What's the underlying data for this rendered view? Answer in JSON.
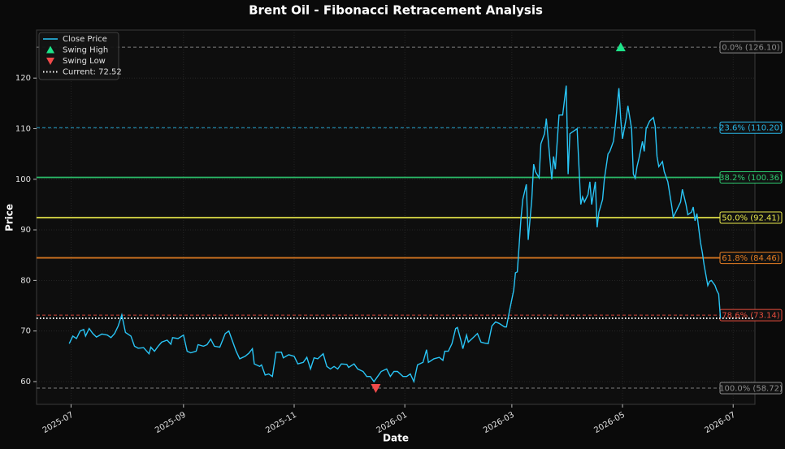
{
  "chart_data": {
    "type": "line",
    "title": "Brent Oil - Fibonacci Retracement Analysis",
    "xlabel": "Date",
    "ylabel": "Price",
    "xlim": [
      "2025-06-12",
      "2026-07-13"
    ],
    "xticks": [
      "2025-07",
      "2025-09",
      "2025-11",
      "2026-01",
      "2026-03",
      "2026-05",
      "2026-07"
    ],
    "ylim": [
      55.5,
      129.5
    ],
    "yticks": [
      60,
      70,
      80,
      90,
      100,
      110,
      120
    ],
    "grid": true,
    "legend": "upper left",
    "series": [
      {
        "name": "Close Price",
        "color": "#29c5f6",
        "kind": "line",
        "x": [
          "2025-06-30",
          "2025-07-02",
          "2025-07-04",
          "2025-07-06",
          "2025-07-08",
          "2025-07-09",
          "2025-07-11",
          "2025-07-13",
          "2025-07-15",
          "2025-07-18",
          "2025-07-21",
          "2025-07-23",
          "2025-07-25",
          "2025-07-27",
          "2025-07-29",
          "2025-07-31",
          "2025-08-03",
          "2025-08-05",
          "2025-08-07",
          "2025-08-10",
          "2025-08-13",
          "2025-08-14",
          "2025-08-16",
          "2025-08-18",
          "2025-08-20",
          "2025-08-23",
          "2025-08-25",
          "2025-08-26",
          "2025-08-29",
          "2025-09-01",
          "2025-09-03",
          "2025-09-05",
          "2025-09-08",
          "2025-09-09",
          "2025-09-12",
          "2025-09-14",
          "2025-09-16",
          "2025-09-18",
          "2025-09-21",
          "2025-09-24",
          "2025-09-26",
          "2025-09-28",
          "2025-09-30",
          "2025-10-02",
          "2025-10-05",
          "2025-10-07",
          "2025-10-09",
          "2025-10-10",
          "2025-10-13",
          "2025-10-14",
          "2025-10-16",
          "2025-10-18",
          "2025-10-20",
          "2025-10-22",
          "2025-10-25",
          "2025-10-26",
          "2025-10-29",
          "2025-11-01",
          "2025-11-03",
          "2025-11-06",
          "2025-11-08",
          "2025-11-10",
          "2025-11-12",
          "2025-11-14",
          "2025-11-17",
          "2025-11-19",
          "2025-11-21",
          "2025-11-23",
          "2025-11-25",
          "2025-11-27",
          "2025-11-30",
          "2025-12-01",
          "2025-12-04",
          "2025-12-06",
          "2025-12-09",
          "2025-12-11",
          "2025-12-13",
          "2025-12-15",
          "2025-12-17",
          "2025-12-19",
          "2025-12-22",
          "2025-12-24",
          "2025-12-26",
          "2025-12-28",
          "2025-12-31",
          "2026-01-02",
          "2026-01-04",
          "2026-01-06",
          "2026-01-08",
          "2026-01-11",
          "2026-01-13",
          "2026-01-14",
          "2026-01-17",
          "2026-01-20",
          "2026-01-22",
          "2026-01-23",
          "2026-01-25",
          "2026-01-27",
          "2026-01-29",
          "2026-01-30",
          "2026-02-01",
          "2026-02-02",
          "2026-02-04",
          "2026-02-05",
          "2026-02-08",
          "2026-02-10",
          "2026-02-12",
          "2026-02-14",
          "2026-02-16",
          "2026-02-18",
          "2026-02-20",
          "2026-02-22",
          "2026-02-25",
          "2026-02-26",
          "2026-02-28",
          "2026-03-02",
          "2026-03-03",
          "2026-03-04",
          "2026-03-06",
          "2026-03-07",
          "2026-03-09",
          "2026-03-10",
          "2026-03-12",
          "2026-03-13",
          "2026-03-14",
          "2026-03-16",
          "2026-03-17",
          "2026-03-19",
          "2026-03-20",
          "2026-03-22",
          "2026-03-23",
          "2026-03-24",
          "2026-03-25",
          "2026-03-27",
          "2026-03-29",
          "2026-03-31",
          "2026-04-01",
          "2026-04-02",
          "2026-04-04",
          "2026-04-06",
          "2026-04-08",
          "2026-04-09",
          "2026-04-10",
          "2026-04-12",
          "2026-04-13",
          "2026-04-14",
          "2026-04-16",
          "2026-04-17",
          "2026-04-18",
          "2026-04-20",
          "2026-04-21",
          "2026-04-23",
          "2026-04-24",
          "2026-04-26",
          "2026-04-27",
          "2026-04-29",
          "2026-04-30",
          "2026-05-01",
          "2026-05-03",
          "2026-05-04",
          "2026-05-06",
          "2026-05-07",
          "2026-05-08",
          "2026-05-09",
          "2026-05-10",
          "2026-05-12",
          "2026-05-13",
          "2026-05-14",
          "2026-05-16",
          "2026-05-18",
          "2026-05-19",
          "2026-05-20",
          "2026-05-21",
          "2026-05-23",
          "2026-05-24",
          "2026-05-26",
          "2026-05-28",
          "2026-05-29",
          "2026-05-31",
          "2026-06-02",
          "2026-06-03",
          "2026-06-05",
          "2026-06-06",
          "2026-06-08",
          "2026-06-09",
          "2026-06-10",
          "2026-06-11",
          "2026-06-13",
          "2026-06-14",
          "2026-06-15",
          "2026-06-17",
          "2026-06-18",
          "2026-06-19",
          "2026-06-21",
          "2026-06-22",
          "2026-06-23",
          "2026-06-24"
        ],
        "values": [
          67.5,
          69,
          68.5,
          70,
          70.3,
          69,
          70.5,
          69.5,
          68.8,
          69.4,
          69.2,
          68.7,
          69.5,
          71,
          73.2,
          69.7,
          69,
          67,
          66.6,
          66.7,
          65.5,
          66.8,
          66,
          67,
          67.8,
          68.2,
          67.4,
          68.7,
          68.5,
          69.2,
          66,
          65.7,
          66,
          67.3,
          67,
          67.3,
          68.4,
          67,
          66.8,
          69.5,
          70,
          68,
          66,
          64.5,
          65,
          65.6,
          66.5,
          63.5,
          63,
          63.3,
          61.3,
          61.5,
          61,
          65.8,
          65.8,
          64.7,
          65.3,
          65,
          63.5,
          63.8,
          64.8,
          62.5,
          64.7,
          64.5,
          65.5,
          63,
          62.5,
          63,
          62.5,
          63.5,
          63.4,
          62.8,
          63.5,
          62.5,
          62,
          61,
          61,
          60,
          61,
          62,
          62.5,
          61,
          62,
          62,
          61,
          61,
          61.5,
          60,
          63.3,
          63.8,
          66.3,
          63.8,
          64.5,
          64.8,
          64.2,
          66,
          66,
          67.5,
          70.5,
          70.7,
          68,
          66.5,
          69.2,
          67.8,
          68.8,
          69.5,
          67.8,
          67.6,
          67.5,
          71,
          71.8,
          71.5,
          70.8,
          70.8,
          74.5,
          78,
          81.5,
          81.7,
          92,
          96,
          99,
          88,
          96,
          103,
          101.5,
          100.3,
          107,
          109,
          112,
          104,
          100,
          104.5,
          102,
          112.7,
          112.7,
          118.5,
          101,
          109,
          109.5,
          110,
          95,
          96.5,
          95.5,
          97,
          99.5,
          95,
          99.5,
          90.5,
          93.5,
          96,
          100,
          105,
          105.5,
          107.5,
          110.5,
          118,
          112,
          108,
          112,
          114.5,
          110,
          101,
          100.2,
          102.5,
          104,
          107.5,
          105.5,
          110,
          111.5,
          112.2,
          110.5,
          104.5,
          102.5,
          103.5,
          101.5,
          99.5,
          95,
          92.5,
          94,
          95.5,
          98,
          95,
          93,
          93.5,
          94.5,
          91.8,
          93.2,
          87.5,
          85.5,
          83,
          79,
          79.8,
          80,
          79,
          78,
          77.3,
          72.52
        ]
      },
      {
        "name": "Swing High",
        "color": "#1de48a",
        "kind": "marker-up",
        "x": [
          "2026-04-30"
        ],
        "values": [
          126.1
        ]
      },
      {
        "name": "Swing Low",
        "color": "#f04a4a",
        "kind": "marker-down",
        "x": [
          "2025-12-16"
        ],
        "values": [
          58.72
        ]
      },
      {
        "name": "Current: 72.52",
        "color": "#ffffff",
        "kind": "hline",
        "values": [
          72.52
        ]
      }
    ],
    "levels": [
      {
        "label": "0.0% (126.10)",
        "value": 126.1,
        "color": "#8c8c8c",
        "style": "dashed"
      },
      {
        "label": "23.6% (110.20)",
        "value": 110.2,
        "color": "#29b6e6",
        "style": "dashed"
      },
      {
        "label": "38.2% (100.36)",
        "value": 100.36,
        "color": "#2ecc71",
        "style": "solid"
      },
      {
        "label": "50.0% (92.41)",
        "value": 92.41,
        "color": "#e8e84a",
        "style": "solid"
      },
      {
        "label": "61.8% (84.46)",
        "value": 84.46,
        "color": "#e67e22",
        "style": "solid"
      },
      {
        "label": "78.6% (73.14)",
        "value": 73.14,
        "color": "#e74c3c",
        "style": "dashed"
      },
      {
        "label": "100.0% (58.72)",
        "value": 58.72,
        "color": "#8c8c8c",
        "style": "dashed"
      }
    ]
  }
}
